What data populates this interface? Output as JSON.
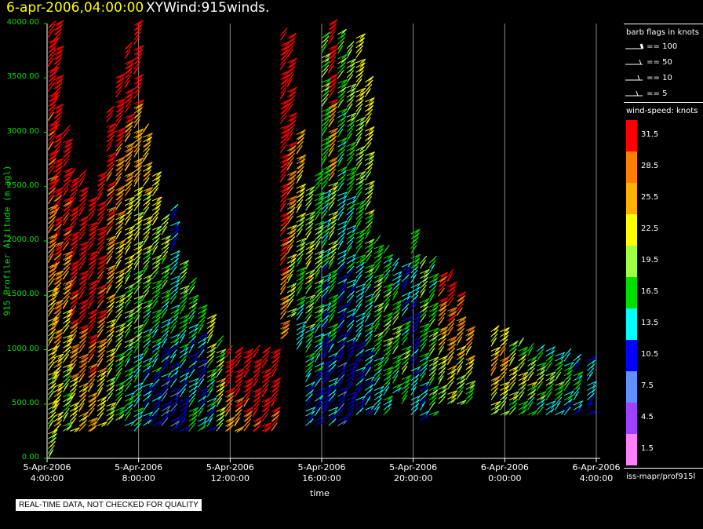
{
  "header": {
    "time": "6-apr-2006,04:00:00",
    "name": "XYWind:915winds."
  },
  "footer_note": "REAL-TIME DATA, NOT CHECKED FOR QUALITY",
  "legend": {
    "barb_title": "barb flags in knots",
    "barbs": [
      "== 100",
      "== 50",
      "== 10",
      "== 5"
    ],
    "speed_title": "wind-speed: knots",
    "source": "iss-mapr/prof915l"
  },
  "chart_data": {
    "type": "wind-barb time-height",
    "title": "",
    "xlabel": "time",
    "ylabel": "915 Profiler Altitude (m agl)",
    "x_ticks": [
      {
        "line1": "5-Apr-2006",
        "line2": "4:00:00",
        "hour": 0
      },
      {
        "line1": "5-Apr-2006",
        "line2": "8:00:00",
        "hour": 4
      },
      {
        "line1": "5-Apr-2006",
        "line2": "12:00:00",
        "hour": 8
      },
      {
        "line1": "5-Apr-2006",
        "line2": "16:00:00",
        "hour": 12
      },
      {
        "line1": "5-Apr-2006",
        "line2": "20:00:00",
        "hour": 16
      },
      {
        "line1": "6-Apr-2006",
        "line2": "0:00:00",
        "hour": 20
      },
      {
        "line1": "6-Apr-2006",
        "line2": "4:00:00",
        "hour": 24
      }
    ],
    "x_range_hours": [
      0,
      24
    ],
    "y_ticks": [
      "4000.00",
      "3500.00",
      "3000.00",
      "2500.00",
      "2000.00",
      "1500.00",
      "1000.00",
      "500.00",
      "0.00"
    ],
    "y_range": [
      0,
      4000
    ],
    "grid": "vertical",
    "color_scale": [
      {
        "label": "31.5",
        "color": "#ff0000"
      },
      {
        "label": "28.5",
        "color": "#ff8000"
      },
      {
        "label": "25.5",
        "color": "#ffb000"
      },
      {
        "label": "22.5",
        "color": "#ffff00"
      },
      {
        "label": "19.5",
        "color": "#a0ff40"
      },
      {
        "label": "16.5",
        "color": "#00e000"
      },
      {
        "label": "13.5",
        "color": "#00ffff"
      },
      {
        "label": "10.5",
        "color": "#0000ff"
      },
      {
        "label": "7.5",
        "color": "#6090ff"
      },
      {
        "label": "4.5",
        "color": "#a040ff"
      },
      {
        "label": "1.5",
        "color": "#ff80ff"
      }
    ],
    "profiles": [
      {
        "hour": 0.05,
        "top": 4000,
        "bottom": 0,
        "speeds": [
          20,
          23,
          27,
          30,
          32
        ]
      },
      {
        "hour": 0.3,
        "top": 4000,
        "bottom": 250,
        "speeds": [
          23,
          27,
          30,
          32,
          33
        ]
      },
      {
        "hour": 0.7,
        "top": 3000,
        "bottom": 250,
        "speeds": [
          18,
          22,
          26,
          30,
          32
        ]
      },
      {
        "hour": 1.0,
        "top": 2600,
        "bottom": 250,
        "speeds": [
          22,
          26,
          30,
          32,
          32
        ]
      },
      {
        "hour": 1.4,
        "top": 2600,
        "bottom": 250,
        "speeds": [
          24,
          28,
          31,
          32,
          33
        ]
      },
      {
        "hour": 1.8,
        "top": 2400,
        "bottom": 250,
        "speeds": [
          25,
          29,
          31,
          32,
          33
        ]
      },
      {
        "hour": 2.2,
        "top": 2600,
        "bottom": 300,
        "speeds": [
          22,
          26,
          30,
          32,
          33
        ]
      },
      {
        "hour": 2.6,
        "top": 3200,
        "bottom": 300,
        "speeds": [
          20,
          23,
          26,
          29,
          32
        ]
      },
      {
        "hour": 3.0,
        "top": 3500,
        "bottom": 350,
        "speeds": [
          17,
          20,
          23,
          27,
          31
        ]
      },
      {
        "hour": 3.4,
        "top": 3800,
        "bottom": 300,
        "speeds": [
          15,
          18,
          22,
          26,
          31
        ]
      },
      {
        "hour": 3.8,
        "top": 4000,
        "bottom": 250,
        "speeds": [
          14,
          18,
          21,
          25,
          31
        ]
      },
      {
        "hour": 4.2,
        "top": 3000,
        "bottom": 300,
        "speeds": [
          12,
          15,
          18,
          21,
          24
        ]
      },
      {
        "hour": 4.6,
        "top": 2600,
        "bottom": 300,
        "speeds": [
          11,
          14,
          16,
          19,
          22
        ]
      },
      {
        "hour": 5.0,
        "top": 2200,
        "bottom": 300,
        "speeds": [
          8,
          11,
          14,
          17,
          20
        ]
      },
      {
        "hour": 5.4,
        "top": 2300,
        "bottom": 250,
        "speeds": [
          9,
          12,
          15,
          13,
          11
        ]
      },
      {
        "hour": 5.8,
        "top": 1800,
        "bottom": 250,
        "speeds": [
          10,
          12,
          14,
          16,
          18
        ]
      },
      {
        "hour": 6.2,
        "top": 1600,
        "bottom": 250,
        "speeds": [
          16,
          13,
          11,
          14,
          17
        ]
      },
      {
        "hour": 6.6,
        "top": 1400,
        "bottom": 250,
        "speeds": [
          14,
          11,
          9,
          12,
          16
        ]
      },
      {
        "hour": 7.0,
        "top": 1300,
        "bottom": 250,
        "speeds": [
          12,
          14,
          17,
          20,
          22
        ]
      },
      {
        "hour": 7.4,
        "top": 1100,
        "bottom": 250,
        "speeds": [
          19,
          21,
          23,
          20,
          17
        ]
      },
      {
        "hour": 7.8,
        "top": 1000,
        "bottom": 250,
        "speeds": [
          26,
          28,
          30,
          32,
          33
        ]
      },
      {
        "hour": 8.2,
        "top": 1000,
        "bottom": 250,
        "speeds": [
          26,
          29,
          31,
          32,
          33
        ]
      },
      {
        "hour": 8.6,
        "top": 1000,
        "bottom": 250,
        "speeds": [
          28,
          30,
          32,
          33,
          33
        ]
      },
      {
        "hour": 9.0,
        "top": 1000,
        "bottom": 250,
        "speeds": [
          30,
          31,
          32,
          33,
          33
        ]
      },
      {
        "hour": 9.4,
        "top": 1000,
        "bottom": 250,
        "speeds": [
          31,
          32,
          33,
          33,
          33
        ]
      },
      {
        "hour": 9.8,
        "top": 1000,
        "bottom": 250,
        "speeds": [
          29,
          31,
          33,
          33,
          33
        ]
      },
      {
        "hour": 10.2,
        "top": 3900,
        "bottom": 1100,
        "speeds": [
          27,
          30,
          32,
          33,
          33
        ]
      },
      {
        "hour": 10.5,
        "top": 3900,
        "bottom": 1300,
        "speeds": [
          20,
          24,
          28,
          31,
          33
        ]
      },
      {
        "hour": 10.9,
        "top": 3000,
        "bottom": 1000,
        "speeds": [
          13,
          16,
          19,
          22,
          25
        ]
      },
      {
        "hour": 11.3,
        "top": 2500,
        "bottom": 300,
        "speeds": [
          12,
          15,
          18,
          21,
          19
        ]
      },
      {
        "hour": 11.7,
        "top": 2600,
        "bottom": 300,
        "speeds": [
          11,
          14,
          17,
          19,
          16
        ]
      },
      {
        "hour": 12.0,
        "top": 3900,
        "bottom": 400,
        "speeds": [
          10,
          12,
          14,
          16,
          18
        ]
      },
      {
        "hour": 12.3,
        "top": 4000,
        "bottom": 300,
        "speeds": [
          12,
          16,
          20,
          26,
          31
        ]
      },
      {
        "hour": 12.7,
        "top": 3900,
        "bottom": 300,
        "speeds": [
          9,
          11,
          13,
          15,
          17
        ]
      },
      {
        "hour": 13.1,
        "top": 3800,
        "bottom": 350,
        "speeds": [
          10,
          12,
          14,
          16,
          19
        ]
      },
      {
        "hour": 13.5,
        "top": 3900,
        "bottom": 400,
        "speeds": [
          11,
          13,
          16,
          19,
          22
        ]
      },
      {
        "hour": 13.9,
        "top": 3500,
        "bottom": 400,
        "speeds": [
          12,
          14,
          17,
          20,
          22
        ]
      },
      {
        "hour": 14.3,
        "top": 2000,
        "bottom": 400,
        "speeds": [
          13,
          15,
          17,
          19,
          16
        ]
      },
      {
        "hour": 14.7,
        "top": 1900,
        "bottom": 400,
        "speeds": [
          14,
          16,
          18,
          17,
          15
        ]
      },
      {
        "hour": 15.1,
        "top": 1800,
        "bottom": 600,
        "speeds": [
          15,
          17,
          19,
          16,
          13
        ]
      },
      {
        "hour": 15.5,
        "top": 1800,
        "bottom": 500,
        "speeds": [
          16,
          18,
          15,
          12,
          11
        ]
      },
      {
        "hour": 15.9,
        "top": 2100,
        "bottom": 400,
        "speeds": [
          13,
          11,
          10,
          13,
          16
        ]
      },
      {
        "hour": 16.3,
        "top": 1800,
        "bottom": 350,
        "speeds": [
          12,
          14,
          16,
          18,
          19
        ]
      },
      {
        "hour": 16.7,
        "top": 1800,
        "bottom": 400,
        "speeds": [
          17,
          19,
          18,
          16,
          15
        ]
      },
      {
        "hour": 17.1,
        "top": 1700,
        "bottom": 500,
        "speeds": [
          19,
          21,
          24,
          27,
          30
        ]
      },
      {
        "hour": 17.5,
        "top": 1700,
        "bottom": 500,
        "speeds": [
          21,
          24,
          27,
          29,
          31
        ]
      },
      {
        "hour": 17.9,
        "top": 1500,
        "bottom": 500,
        "speeds": [
          18,
          21,
          24,
          27,
          29
        ]
      },
      {
        "hour": 18.3,
        "top": 1200,
        "bottom": 500,
        "speeds": [
          16,
          19,
          22,
          24,
          26
        ]
      },
      {
        "hour": 19.4,
        "top": 1200,
        "bottom": 400,
        "speeds": [
          20,
          23,
          26,
          23,
          21
        ]
      },
      {
        "hour": 19.8,
        "top": 1200,
        "bottom": 400,
        "speeds": [
          19,
          22,
          25,
          28,
          22
        ]
      },
      {
        "hour": 20.2,
        "top": 1050,
        "bottom": 400,
        "speeds": [
          17,
          20,
          23,
          21,
          18
        ]
      },
      {
        "hour": 20.6,
        "top": 1050,
        "bottom": 400,
        "speeds": [
          16,
          19,
          22,
          20,
          17
        ]
      },
      {
        "hour": 21.0,
        "top": 1000,
        "bottom": 400,
        "speeds": [
          15,
          18,
          21,
          19,
          16
        ]
      },
      {
        "hour": 21.4,
        "top": 1000,
        "bottom": 400,
        "speeds": [
          14,
          17,
          20,
          18,
          15
        ]
      },
      {
        "hour": 21.8,
        "top": 1000,
        "bottom": 400,
        "speeds": [
          13,
          16,
          19,
          17,
          14
        ]
      },
      {
        "hour": 22.2,
        "top": 950,
        "bottom": 400,
        "speeds": [
          13,
          15,
          18,
          16,
          14
        ]
      },
      {
        "hour": 22.6,
        "top": 950,
        "bottom": 400,
        "speeds": [
          12,
          14,
          17,
          15,
          13
        ]
      },
      {
        "hour": 23.0,
        "top": 900,
        "bottom": 400,
        "speeds": [
          12,
          14,
          16,
          14,
          12
        ]
      },
      {
        "hour": 23.6,
        "top": 900,
        "bottom": 400,
        "speeds": [
          10,
          12,
          14,
          13,
          12
        ]
      }
    ]
  }
}
